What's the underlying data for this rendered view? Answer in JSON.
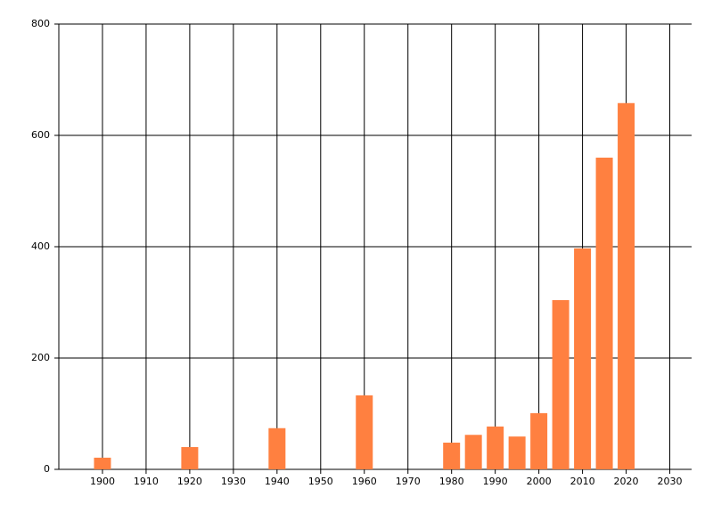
{
  "chart_data": {
    "type": "bar",
    "x": [
      1900,
      1920,
      1940,
      1960,
      1980,
      1985,
      1990,
      1995,
      2000,
      2005,
      2010,
      2015,
      2020
    ],
    "values": [
      21,
      40,
      74,
      133,
      48,
      62,
      77,
      59,
      101,
      304,
      397,
      560,
      658
    ],
    "color": "#ff8040",
    "xlim": [
      1890,
      2035
    ],
    "xticks": [
      1900,
      1910,
      1920,
      1930,
      1940,
      1950,
      1960,
      1970,
      1980,
      1990,
      2000,
      2010,
      2020,
      2030
    ],
    "ylim": [
      0,
      800
    ],
    "yticks": [
      0,
      200,
      400,
      600,
      800
    ],
    "grid": true
  }
}
